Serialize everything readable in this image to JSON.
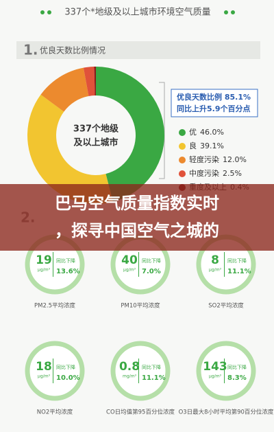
{
  "header": {
    "title": "337个*地级及以上城市环境空气质量"
  },
  "section1": {
    "number": "1.",
    "title": "优良天数比例情况"
  },
  "chart_data": {
    "type": "pie",
    "center_label": [
      "337个地级",
      "及以上城市"
    ],
    "categories": [
      "优",
      "良",
      "轻度污染",
      "中度污染",
      "重度及以上"
    ],
    "values": [
      46.0,
      39.1,
      12.0,
      2.5,
      0.4
    ],
    "value_labels": [
      "46.0%",
      "39.1%",
      "12.0%",
      "2.5%",
      "0.4%"
    ],
    "colors": [
      "#3aa843",
      "#f2c530",
      "#ec8a2e",
      "#e0523a",
      "#8b1a1a"
    ],
    "annotation": [
      "优良天数比例 85.1%",
      "同比上升5.9个百分点"
    ]
  },
  "overlay": {
    "lines": [
      "巴马空气质量指数实时",
      "，探寻中国空气之城的"
    ]
  },
  "section2": {
    "number": "2."
  },
  "pollutants": [
    {
      "value": "19",
      "unit": "μg/m³",
      "change_label": "同比下降",
      "change": "13.6%",
      "name": "PM2.5平均浓度"
    },
    {
      "value": "40",
      "unit": "μg/m³",
      "change_label": "同比下降",
      "change": "7.0%",
      "name": "PM10平均浓度"
    },
    {
      "value": "8",
      "unit": "μg/m³",
      "change_label": "同比下降",
      "change": "11.1%",
      "name": "SO2平均浓度"
    },
    {
      "value": "18",
      "unit": "μg/m³",
      "change_label": "同比下降",
      "change": "10.0%",
      "name": "NO2平均浓度"
    },
    {
      "value": "0.8",
      "unit": "mg/m³",
      "change_label": "同比下降",
      "change": "11.1%",
      "name": "CO日均值第95百分位浓度"
    },
    {
      "value": "143",
      "unit": "μg/m³",
      "change_label": "同比下降",
      "change": "8.3%",
      "name": "O3日最大8小时平均第90百分位浓度"
    }
  ]
}
